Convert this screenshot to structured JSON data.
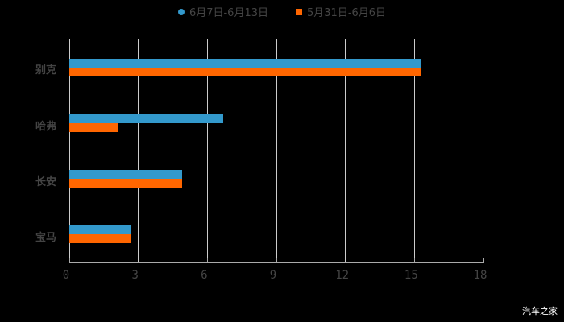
{
  "chart_data": {
    "type": "bar",
    "orientation": "horizontal",
    "title": "",
    "xlabel": "",
    "ylabel": "",
    "categories": [
      "别克",
      "哈弗",
      "长安",
      "宝马"
    ],
    "series": [
      {
        "name": "6月7日-6月13日",
        "color": "#3399CC",
        "values": [
          15.3,
          6.7,
          4.9,
          2.7
        ]
      },
      {
        "name": "5月31日-6月6日",
        "color": "#FF6600",
        "values": [
          15.3,
          2.1,
          4.9,
          2.7
        ]
      }
    ],
    "xlim": [
      0,
      18
    ],
    "x_ticks": [
      "0",
      "3",
      "6",
      "9",
      "12",
      "15",
      "18"
    ],
    "grid": true,
    "legend_position": "top"
  },
  "legend": {
    "items": [
      {
        "label": "6月7日-6月13日",
        "color": "#3399CC",
        "marker": "circle"
      },
      {
        "label": "5月31日-6月6日",
        "color": "#FF6600",
        "marker": "square"
      }
    ]
  },
  "watermark": "汽车之家"
}
